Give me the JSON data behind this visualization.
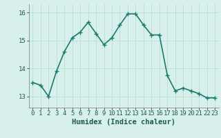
{
  "x": [
    0,
    1,
    2,
    3,
    4,
    5,
    6,
    7,
    8,
    9,
    10,
    11,
    12,
    13,
    14,
    15,
    16,
    17,
    18,
    19,
    20,
    21,
    22,
    23
  ],
  "y": [
    13.5,
    13.4,
    13.0,
    13.9,
    14.6,
    15.1,
    15.3,
    15.65,
    15.25,
    14.85,
    15.1,
    15.55,
    15.95,
    15.95,
    15.55,
    15.2,
    15.2,
    13.75,
    13.2,
    13.3,
    13.2,
    13.1,
    12.95,
    12.95
  ],
  "line_color": "#1a7a6e",
  "marker": "+",
  "marker_size": 4,
  "bg_color": "#d8f0ec",
  "grid_color": "#b8ddd7",
  "xlabel": "Humidex (Indice chaleur)",
  "xlabel_fontsize": 7.5,
  "ylim": [
    12.6,
    16.3
  ],
  "xlim": [
    -0.5,
    23.5
  ],
  "yticks": [
    13,
    14,
    15,
    16
  ],
  "xticks": [
    0,
    1,
    2,
    3,
    4,
    5,
    6,
    7,
    8,
    9,
    10,
    11,
    12,
    13,
    14,
    15,
    16,
    17,
    18,
    19,
    20,
    21,
    22,
    23
  ],
  "tick_fontsize": 6.5,
  "linewidth": 1.2
}
